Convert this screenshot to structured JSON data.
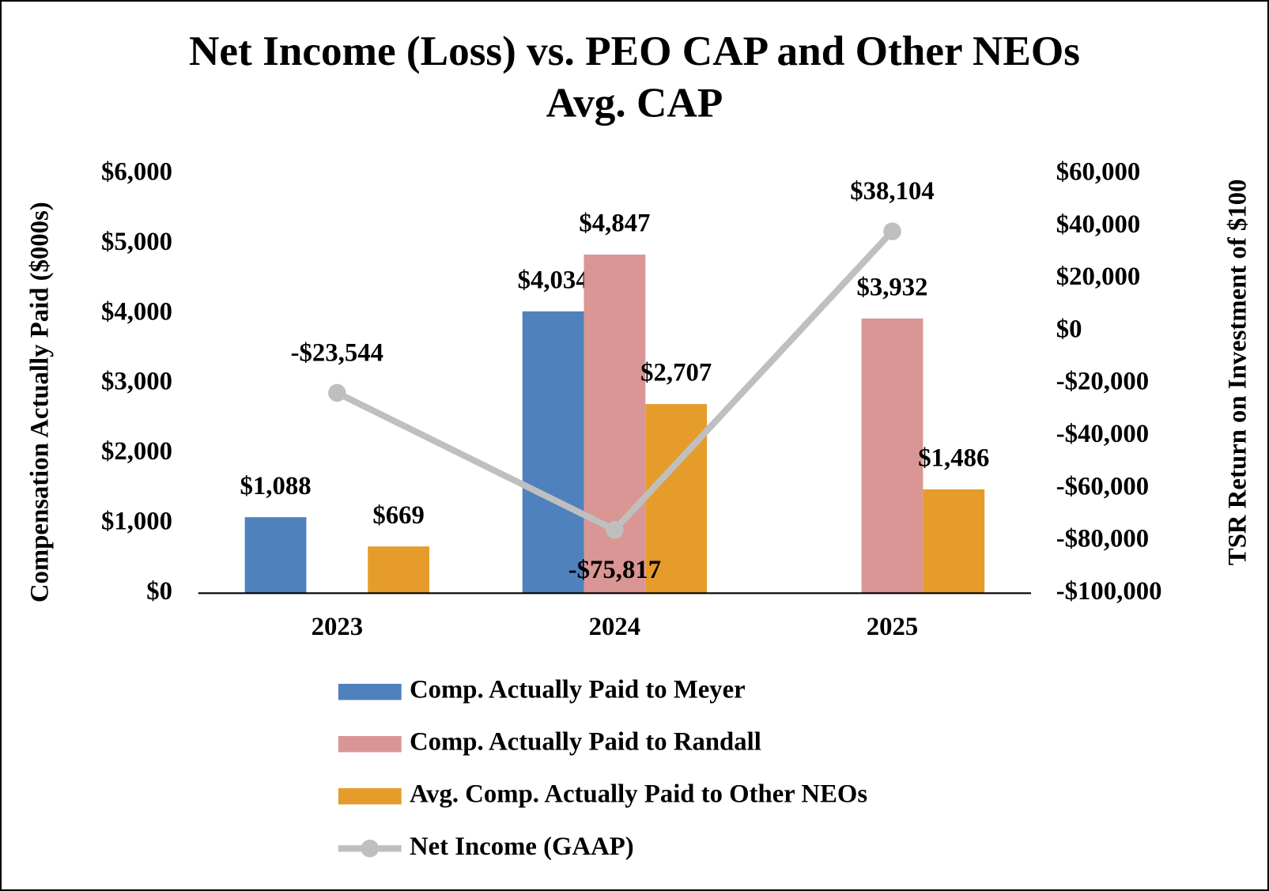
{
  "chart_data": {
    "type": "bar",
    "title": [
      "Net Income (Loss) vs. PEO CAP and Other NEOs",
      "Avg. CAP"
    ],
    "y_label": "Compensation Actually Paid ($000s)",
    "y2_label": "TSR Return on Investment of $100",
    "categories": [
      "2023",
      "2024",
      "2025"
    ],
    "series": [
      {
        "name": "Comp. Actually Paid to Meyer",
        "type": "bar",
        "color": "#4f81bd",
        "values": [
          1088,
          4034,
          null
        ],
        "value_labels": [
          "$1,088",
          "$4,034",
          null
        ]
      },
      {
        "name": "Comp. Actually Paid to Randall",
        "type": "bar",
        "color": "#d99694",
        "values": [
          null,
          4847,
          3932
        ],
        "value_labels": [
          null,
          "$4,847",
          "$3,932"
        ]
      },
      {
        "name": "Avg. Comp. Actually Paid to Other NEOs",
        "type": "bar",
        "color": "#e59c2a",
        "values": [
          669,
          2707,
          1486
        ],
        "value_labels": [
          "$669",
          "$2,707",
          "$1,486"
        ]
      },
      {
        "name": "Net Income (GAAP)",
        "type": "line",
        "axis": "y2",
        "color": "#bfbfbf",
        "values": [
          -23544,
          -75817,
          38104
        ],
        "value_labels": [
          "-$23,544",
          "-$75,817",
          "$38,104"
        ]
      }
    ],
    "ylim": [
      0,
      6000
    ],
    "yticks": [
      {
        "value": 0,
        "label": "$0"
      },
      {
        "value": 1000,
        "label": "$1,000"
      },
      {
        "value": 2000,
        "label": "$2,000"
      },
      {
        "value": 3000,
        "label": "$3,000"
      },
      {
        "value": 4000,
        "label": "$4,000"
      },
      {
        "value": 5000,
        "label": "$5,000"
      },
      {
        "value": 6000,
        "label": "$6,000"
      }
    ],
    "y2lim": [
      -100000,
      60000
    ],
    "y2ticks": [
      {
        "value": -100000,
        "label": "-$100,000"
      },
      {
        "value": -80000,
        "label": "-$80,000"
      },
      {
        "value": -60000,
        "label": "-$60,000"
      },
      {
        "value": -40000,
        "label": "-$40,000"
      },
      {
        "value": -20000,
        "label": "-$20,000"
      },
      {
        "value": 0,
        "label": "$0"
      },
      {
        "value": 20000,
        "label": "$20,000"
      },
      {
        "value": 40000,
        "label": "$40,000"
      },
      {
        "value": 60000,
        "label": "$60,000"
      }
    ],
    "grid": false
  }
}
